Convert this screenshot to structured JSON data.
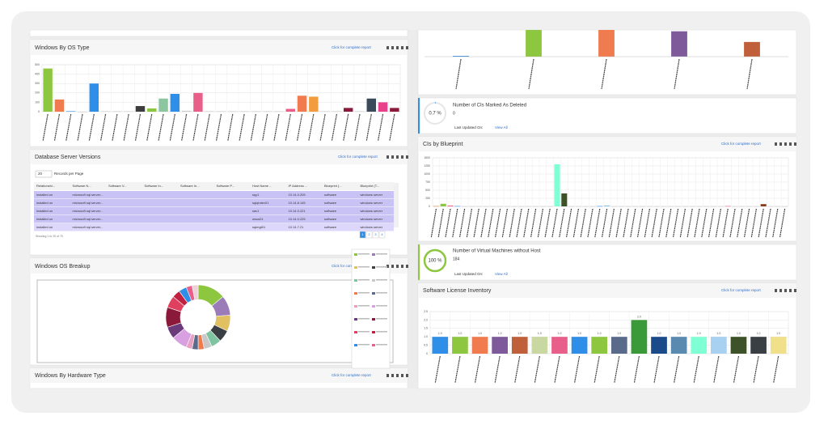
{
  "left": {
    "os_type": {
      "title": "Windows By OS Type",
      "link": "Click for complete report",
      "chart": {
        "type": "bar",
        "ylim": [
          0,
          500
        ],
        "yticks": [
          0,
          100,
          200,
          300,
          400,
          500
        ],
        "values": [
          460,
          130,
          5,
          0,
          300,
          5,
          5,
          5,
          60,
          35,
          140,
          190,
          10,
          200,
          5,
          5,
          5,
          5,
          5,
          5,
          5,
          30,
          170,
          160,
          5,
          5,
          40,
          5,
          140,
          100,
          40
        ],
        "colors": [
          "#8dc63f",
          "#f07b4f",
          "#2f8fe8",
          "#cccccc",
          "#2f8fe8",
          "#cccccc",
          "#cccccc",
          "#cccccc",
          "#3d3d3d",
          "#8cc63f",
          "#8cc6a0",
          "#2f8fe8",
          "#cccccc",
          "#e85f8a",
          "#cccccc",
          "#cccccc",
          "#cccccc",
          "#cccccc",
          "#cccccc",
          "#cccccc",
          "#cccccc",
          "#e85f8a",
          "#f07b4f",
          "#f39c3f",
          "#cccccc",
          "#cccccc",
          "#8b1a3a",
          "#cccccc",
          "#3a4a5a",
          "#e8408a",
          "#8b1a3a"
        ]
      }
    },
    "db": {
      "title": "Database Server Versions",
      "link": "Click for complete report",
      "records": 20,
      "records_label": "Records per Page",
      "showing": "Showing 1 to 20 of 70",
      "pages": [
        1,
        2,
        3,
        4
      ],
      "table": {
        "columns": [
          "Relationshi...",
          "Software N...",
          "Software V...",
          "Software In...",
          "Software In...",
          "Software P...",
          "Host Name ...",
          "IP Address ...",
          "Blueprint (...",
          "Blueprint (T..."
        ],
        "rows": [
          [
            "installed on",
            "microsoft sql server...",
            null,
            null,
            null,
            null,
            "sqy1",
            "10.14.0.205",
            "software",
            "windows server"
          ],
          [
            "installed on",
            "microsoft sql server...",
            null,
            null,
            null,
            null,
            "sqlqhdev01",
            "10.14.8.145",
            "software",
            "windows server"
          ],
          [
            "installed on",
            "microsoft sql server...",
            null,
            null,
            null,
            null,
            "sav1",
            "10.14.0.221",
            "software",
            "windows server"
          ],
          [
            "installed on",
            "microsoft sql server...",
            null,
            null,
            null,
            null,
            "wsus01",
            "10.14.0.225",
            "software",
            "windows server"
          ],
          [
            "installed on",
            "microsoft sql server...",
            null,
            null,
            null,
            null,
            "sqlmgt01",
            "10.14.7.21",
            "software",
            "windows server"
          ]
        ]
      }
    },
    "breakup": {
      "title": "Windows OS Breakup",
      "link": "Click for complete report",
      "chart": {
        "type": "pie",
        "values": [
          14,
          10,
          8,
          6,
          5,
          4,
          3,
          3,
          3,
          8,
          6,
          10,
          6,
          4,
          4,
          3,
          3
        ],
        "colors": [
          "#8dc63f",
          "#9b7bb8",
          "#e0c060",
          "#3a3f44",
          "#7fc4a0",
          "#c8c8c8",
          "#f07b4f",
          "#5a6a8a",
          "#e8a0c0",
          "#d8a0e0",
          "#6a3a7a",
          "#8b1a3a",
          "#e04060",
          "#c02040",
          "#2f8fe8",
          "#e85f8a",
          "#f0d0d8"
        ]
      }
    },
    "hardware": {
      "title": "Windows By Hardware Type",
      "link": "Click for complete report"
    }
  },
  "right": {
    "top": {
      "chart": {
        "type": "bar",
        "ylim": [
          0,
          100
        ],
        "values": [
          3,
          110,
          105,
          95,
          55
        ],
        "colors": [
          "#2f8fe8",
          "#8dc63f",
          "#f07b4f",
          "#7e5a9b",
          "#c0603a"
        ]
      }
    },
    "deleted": {
      "title": "Number of CIs Marked As Deleted",
      "percent": {
        "value": 0.7,
        "label": "0.7 %"
      },
      "count": 0,
      "updated": "Last Updated On:",
      "view": "View All"
    },
    "blueprint": {
      "title": "CIs by Blueprint",
      "link": "Click for complete report",
      "chart": {
        "type": "bar",
        "ylim": [
          0,
          1500
        ],
        "yticks": [
          0,
          250,
          500,
          750,
          1000,
          1250,
          1500
        ],
        "values": [
          10,
          80,
          25,
          10,
          5,
          5,
          5,
          5,
          5,
          5,
          5,
          5,
          5,
          5,
          5,
          5,
          5,
          1300,
          400,
          5,
          5,
          5,
          5,
          10,
          30,
          5,
          5,
          5,
          5,
          5,
          5,
          5,
          5,
          5,
          5,
          5,
          5,
          5,
          5,
          5,
          5,
          10,
          5,
          5,
          5,
          5,
          70,
          5,
          5,
          5
        ],
        "colors": [
          "#e0873a",
          "#8dc63f",
          "#e85f8a",
          "#2f8fe8",
          "#c8c8c8",
          "#c8c8c8",
          "#c8c8c8",
          "#c8c8c8",
          "#c8c8c8",
          "#c8c8c8",
          "#c8c8c8",
          "#c8c8c8",
          "#c8c8c8",
          "#c8c8c8",
          "#c8c8c8",
          "#c8c8c8",
          "#c8c8c8",
          "#7fffd4",
          "#3d5229",
          "#c8c8c8",
          "#c8c8c8",
          "#c8c8c8",
          "#c8c8c8",
          "#2f8fe8",
          "#8cc6e8",
          "#c8c8c8",
          "#c8c8c8",
          "#c8c8c8",
          "#c8c8c8",
          "#c8c8c8",
          "#c8c8c8",
          "#c8c8c8",
          "#c8c8c8",
          "#c8c8c8",
          "#c8c8c8",
          "#c8c8c8",
          "#c8c8c8",
          "#c8c8c8",
          "#c8c8c8",
          "#c8c8c8",
          "#c8c8c8",
          "#e85f8a",
          "#c8c8c8",
          "#c8c8c8",
          "#c8c8c8",
          "#c8c8c8",
          "#8b3a1a",
          "#c8c8c8",
          "#c8c8c8",
          "#c8c8c8"
        ]
      }
    },
    "vm": {
      "title": "Number of Virtual Machines without Host",
      "percent": {
        "value": 100,
        "label": "100 %"
      },
      "count": 184,
      "updated": "Last Updated On:",
      "view": "View All"
    },
    "license": {
      "title": "Software License Inventory",
      "link": "Click for complete report",
      "chart": {
        "type": "bar",
        "ylim": [
          0,
          2.5
        ],
        "yticks": [
          0,
          0.5,
          {
            "value": 1,
            "label": "1.0"
          },
          1.5,
          {
            "value": 2,
            "label": "2.0"
          },
          2.5
        ],
        "values": [
          1,
          1,
          1,
          1,
          1,
          1,
          1,
          1,
          1,
          1,
          2,
          1,
          1,
          1,
          1,
          1,
          1,
          1
        ],
        "value_labels": [
          "1.0",
          "1.0",
          "1.0",
          "1.0",
          "1.0",
          "1.0",
          "1.0",
          "1.0",
          "1.0",
          "1.0",
          "2.0",
          "1.0",
          "1.0",
          "1.0",
          "1.0",
          "1.0",
          "1.0",
          "1.0"
        ],
        "colors": [
          "#2f8fe8",
          "#8dc63f",
          "#f07b4f",
          "#7e5a9b",
          "#c0603a",
          "#c8d8a0",
          "#e85f8a",
          "#2f8fe8",
          "#8dc63f",
          "#5a6a8a",
          "#3a9a3a",
          "#1a4a8a",
          "#5a8ab0",
          "#7fffd4",
          "#a8d0f0",
          "#3d5229",
          "#3a3f44",
          "#f0e08a"
        ]
      }
    }
  }
}
